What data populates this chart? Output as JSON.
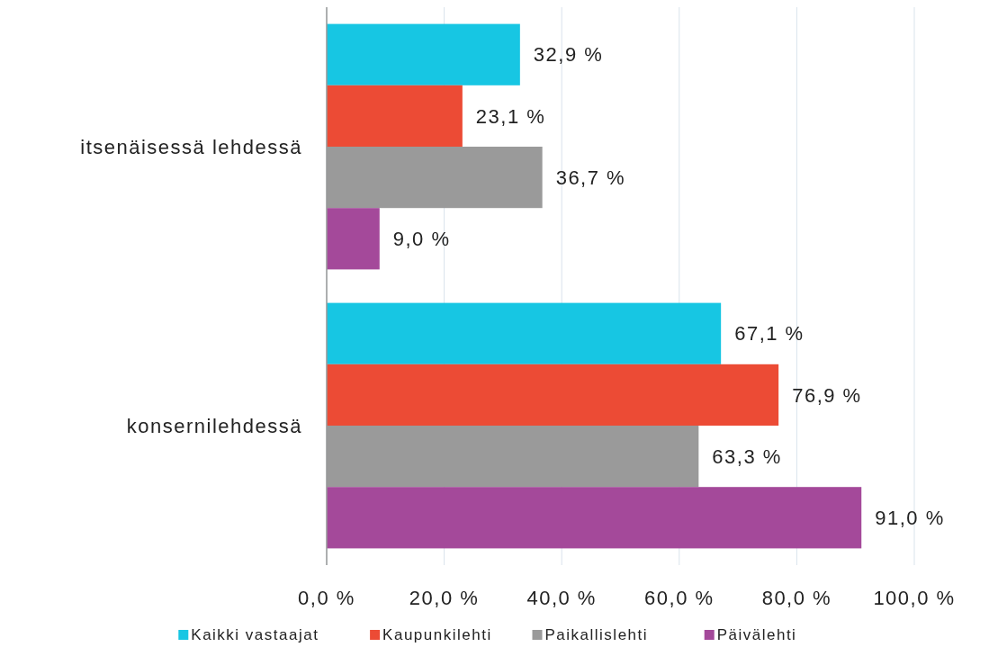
{
  "chart_data": {
    "type": "bar",
    "orientation": "horizontal",
    "categories": [
      "itsenäisessä lehdessä",
      "konsernilehdessä"
    ],
    "series": [
      {
        "name": "Kaikki vastaajat",
        "color": "#17c6e3",
        "values": [
          32.9,
          67.1
        ],
        "value_labels": [
          "32,9 %",
          "67,1 %"
        ]
      },
      {
        "name": "Kaupunkilehti",
        "color": "#ec4b35",
        "values": [
          23.1,
          76.9
        ],
        "value_labels": [
          "23,1 %",
          "76,9 %"
        ]
      },
      {
        "name": "Paikallislehti",
        "color": "#9a9a9a",
        "values": [
          36.7,
          63.3
        ],
        "value_labels": [
          "36,7 %",
          "63,3 %"
        ]
      },
      {
        "name": "Päivälehti",
        "color": "#a4499a",
        "values": [
          9.0,
          91.0
        ],
        "value_labels": [
          "9,0 %",
          "91,0 %"
        ]
      }
    ],
    "xlim": [
      0,
      100
    ],
    "xticks": [
      {
        "value": 0,
        "label": "0,0 %"
      },
      {
        "value": 20,
        "label": "20,0 %"
      },
      {
        "value": 40,
        "label": "40,0 %"
      },
      {
        "value": 60,
        "label": "60,0 %"
      },
      {
        "value": 80,
        "label": "80,0 %"
      },
      {
        "value": 100,
        "label": "100,0 %"
      }
    ],
    "grid": "x",
    "legend": "bottom"
  }
}
